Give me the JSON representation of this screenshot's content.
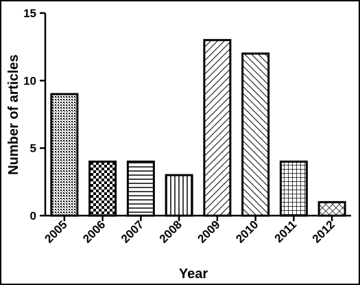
{
  "chart_data": {
    "type": "bar",
    "title": "",
    "xlabel": "Year",
    "ylabel": "Number of articles",
    "categories": [
      "2005",
      "2006",
      "2007",
      "2008",
      "2009",
      "2010",
      "2011",
      "2012"
    ],
    "values": [
      9,
      4,
      4,
      3,
      13,
      12,
      4,
      1
    ],
    "ylim": [
      0,
      15
    ],
    "yticks": [
      "0",
      "5",
      "10",
      "15"
    ],
    "grid": false,
    "legend": "none",
    "bar_patterns": [
      "dots",
      "checker",
      "horizontal-lines",
      "vertical-lines",
      "diagonal-lines",
      "back-diagonal-lines",
      "grid",
      "diagonal-crosshatch"
    ]
  }
}
